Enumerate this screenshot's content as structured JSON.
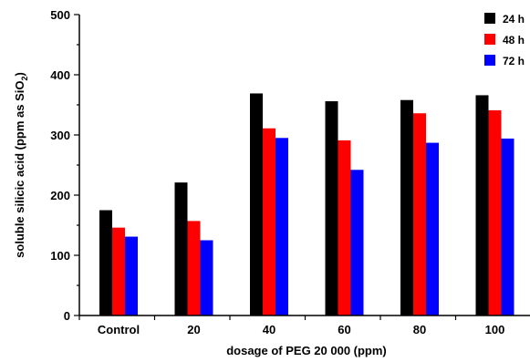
{
  "chart_data": {
    "type": "bar",
    "categories": [
      "Control",
      "20",
      "40",
      "60",
      "80",
      "100"
    ],
    "series": [
      {
        "name": "24 h",
        "color": "#000000",
        "values": [
          175,
          221,
          369,
          356,
          358,
          366
        ]
      },
      {
        "name": "48 h",
        "color": "#ff0000",
        "values": [
          146,
          157,
          311,
          291,
          336,
          341
        ]
      },
      {
        "name": "72 h",
        "color": "#0000ff",
        "values": [
          131,
          125,
          295,
          242,
          287,
          294
        ]
      }
    ],
    "xlabel": "dosage of PEG 20 000 (ppm)",
    "ylabel": {
      "main": "soluble silicic acid (ppm as SiO",
      "sub": "2",
      "end": ")"
    },
    "ylim": [
      0,
      500
    ],
    "yticks": [
      "0",
      "100",
      "200",
      "300",
      "400",
      "500"
    ],
    "grid": false,
    "legend": "top-right"
  }
}
